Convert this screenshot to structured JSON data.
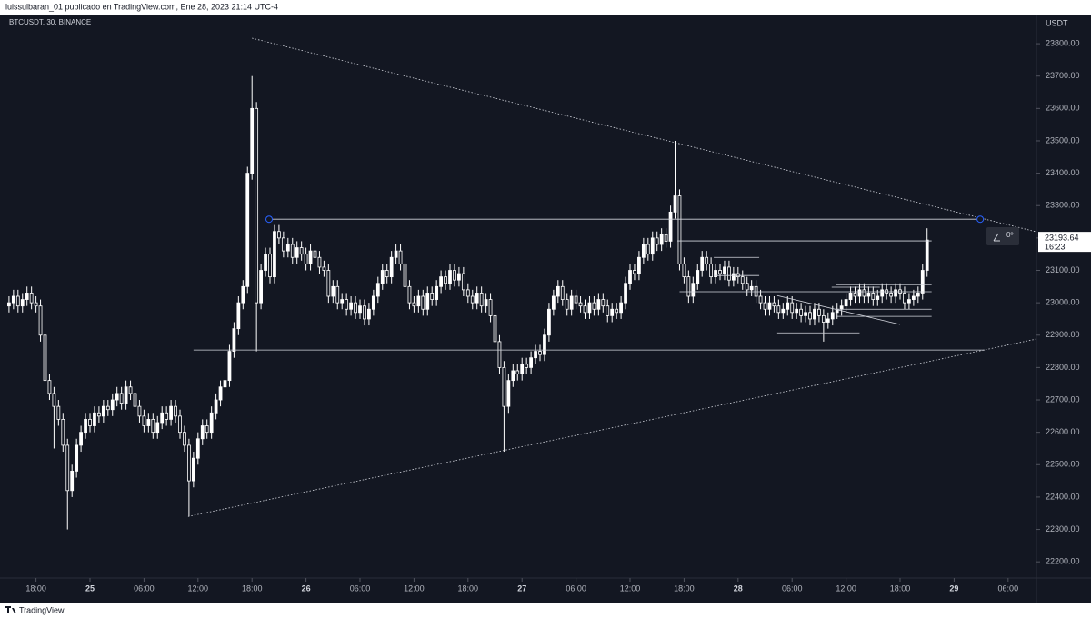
{
  "header": {
    "text": "luissulbaran_01 publicado en TradingView.com, Ene 28, 2023 21:14 UTC-4"
  },
  "footer": {
    "brand": "TradingView"
  },
  "chart_data": {
    "type": "candlestick",
    "symbol": "BTCUSDT, 30, BINANCE",
    "currency": "USDT",
    "countdown": "16:23",
    "angle_label": "0º",
    "color": "#ffffff",
    "ylim": [
      22150,
      23890
    ],
    "yticks": [
      {
        "value": 22200,
        "label": "22200.00"
      },
      {
        "value": 22300,
        "label": "22300.00"
      },
      {
        "value": 22400,
        "label": "22400.00"
      },
      {
        "value": 22500,
        "label": "22500.00"
      },
      {
        "value": 22600,
        "label": "22600.00"
      },
      {
        "value": 22700,
        "label": "22700.00"
      },
      {
        "value": 22800,
        "label": "22800.00"
      },
      {
        "value": 22900,
        "label": "22900.00"
      },
      {
        "value": 23000,
        "label": "23000.00"
      },
      {
        "value": 23100,
        "label": "23100.00"
      },
      {
        "value": 23200,
        "label": "23200.00"
      },
      {
        "value": 23300,
        "label": "23300.00"
      },
      {
        "value": 23400,
        "label": "23400.00"
      },
      {
        "value": 23500,
        "label": "23500.00"
      },
      {
        "value": 23600,
        "label": "23600.00"
      },
      {
        "value": 23700,
        "label": "23700.00"
      },
      {
        "value": 23800,
        "label": "23800.00"
      }
    ],
    "xlim": [
      -2,
      228.3
    ],
    "xticks": [
      {
        "value": 6,
        "label": "18:00"
      },
      {
        "value": 18,
        "label": "25"
      },
      {
        "value": 30,
        "label": "06:00"
      },
      {
        "value": 42,
        "label": "12:00"
      },
      {
        "value": 54,
        "label": "18:00"
      },
      {
        "value": 66,
        "label": "26"
      },
      {
        "value": 78,
        "label": "06:00"
      },
      {
        "value": 90,
        "label": "12:00"
      },
      {
        "value": 102,
        "label": "18:00"
      },
      {
        "value": 114,
        "label": "27"
      },
      {
        "value": 126,
        "label": "06:00"
      },
      {
        "value": 138,
        "label": "12:00"
      },
      {
        "value": 150,
        "label": "18:00"
      },
      {
        "value": 162,
        "label": "28"
      },
      {
        "value": 174,
        "label": "06:00"
      },
      {
        "value": 186,
        "label": "12:00"
      },
      {
        "value": 198,
        "label": "18:00"
      },
      {
        "value": 210,
        "label": "29"
      },
      {
        "value": 222,
        "label": "06:00"
      }
    ],
    "open": [
      22990,
      23000,
      23020,
      22990,
      23010,
      23030,
      23000,
      22990,
      22900,
      22760,
      22720,
      22680,
      22640,
      22560,
      22420,
      22480,
      22560,
      22600,
      22640,
      22620,
      22660,
      22650,
      22680,
      22670,
      22700,
      22720,
      22690,
      22740,
      22720,
      22680,
      22650,
      22620,
      22640,
      22600,
      22630,
      22660,
      22640,
      22680,
      22650,
      22600,
      22560,
      22450,
      22520,
      22580,
      22620,
      22600,
      22660,
      22700,
      22740,
      22760,
      22850,
      22920,
      23000,
      23050,
      23400,
      23600,
      23000,
      23100,
      23150,
      23080,
      23220,
      23200,
      23160,
      23180,
      23140,
      23170,
      23150,
      23120,
      23160,
      23140,
      23110,
      23100,
      23020,
      23050,
      23000,
      23010,
      22980,
      23000,
      22970,
      22990,
      22950,
      22980,
      23020,
      23060,
      23100,
      23080,
      23140,
      23160,
      23120,
      23050,
      23000,
      22990,
      23020,
      22980,
      23030,
      23010,
      23050,
      23080,
      23060,
      23100,
      23070,
      23090,
      23040,
      23020,
      23000,
      23030,
      22990,
      23010,
      22960,
      22880,
      22800,
      22680,
      22760,
      22790,
      22780,
      22810,
      22800,
      22830,
      22850,
      22840,
      22900,
      22980,
      23020,
      23050,
      23010,
      22980,
      23020,
      23000,
      22990,
      22970,
      23000,
      22980,
      23010,
      22990,
      22960,
      22980,
      22970,
      23000,
      23060,
      23100,
      23090,
      23140,
      23180,
      23150,
      23200,
      23180,
      23210,
      23190,
      23280,
      23330,
      23120,
      23080,
      23020,
      23060,
      23100,
      23140,
      23120,
      23080,
      23100,
      23090,
      23110,
      23070,
      23090,
      23080,
      23060,
      23040,
      23050,
      23020,
      23000,
      22980,
      23000,
      22990,
      22970,
      22980,
      23000,
      22970,
      22980,
      22960,
      22970,
      22950,
      22980,
      22960,
      22940,
      22950,
      22970,
      22980,
      22990,
      23010,
      23030,
      23020,
      23040,
      23020,
      23030,
      23010,
      23020,
      23040,
      23030,
      23020,
      23040,
      23030,
      23000,
      23010,
      23020,
      23030,
      23100
    ],
    "high": [
      23020,
      23040,
      23040,
      23030,
      23050,
      23050,
      23020,
      23010,
      22920,
      22780,
      22740,
      22700,
      22660,
      22580,
      22500,
      22580,
      22620,
      22660,
      22660,
      22680,
      22680,
      22700,
      22700,
      22720,
      22740,
      22740,
      22760,
      22760,
      22740,
      22700,
      22670,
      22660,
      22660,
      22650,
      22680,
      22680,
      22700,
      22700,
      22670,
      22620,
      22580,
      22540,
      22600,
      22640,
      22640,
      22680,
      22720,
      22760,
      22780,
      22870,
      22940,
      23020,
      23070,
      23420,
      23700,
      23620,
      23120,
      23170,
      23170,
      23240,
      23240,
      23220,
      23200,
      23200,
      23190,
      23190,
      23170,
      23180,
      23180,
      23160,
      23130,
      23120,
      23070,
      23070,
      23030,
      23030,
      23020,
      23020,
      23010,
      23010,
      23000,
      23040,
      23080,
      23120,
      23120,
      23160,
      23180,
      23180,
      23140,
      23070,
      23020,
      23040,
      23040,
      23050,
      23050,
      23070,
      23100,
      23100,
      23120,
      23120,
      23110,
      23110,
      23060,
      23040,
      23050,
      23050,
      23030,
      23030,
      22980,
      22900,
      22820,
      22780,
      22810,
      22810,
      22830,
      22830,
      22850,
      22870,
      22870,
      22920,
      23000,
      23040,
      23070,
      23070,
      23030,
      23040,
      23040,
      23020,
      23010,
      23020,
      23020,
      23030,
      23030,
      23010,
      23000,
      23000,
      23020,
      23080,
      23120,
      23120,
      23160,
      23200,
      23200,
      23220,
      23220,
      23230,
      23230,
      23300,
      23500,
      23350,
      23140,
      23100,
      23080,
      23120,
      23160,
      23160,
      23140,
      23120,
      23120,
      23130,
      23130,
      23110,
      23110,
      23100,
      23080,
      23070,
      23070,
      23040,
      23020,
      23020,
      23020,
      23010,
      23000,
      23020,
      23020,
      23000,
      23000,
      22990,
      22990,
      23000,
      23000,
      22980,
      22970,
      22990,
      23000,
      23010,
      23030,
      23050,
      23050,
      23060,
      23060,
      23050,
      23050,
      23040,
      23060,
      23060,
      23050,
      23060,
      23060,
      23050,
      23030,
      23040,
      23050,
      23120,
      23230
    ],
    "low": [
      22970,
      22980,
      22970,
      22970,
      22990,
      22980,
      22970,
      22880,
      22600,
      22700,
      22550,
      22620,
      22540,
      22300,
      22400,
      22460,
      22540,
      22580,
      22600,
      22600,
      22630,
      22630,
      22650,
      22650,
      22680,
      22670,
      22670,
      22700,
      22660,
      22630,
      22600,
      22600,
      22580,
      22580,
      22610,
      22620,
      22620,
      22630,
      22580,
      22540,
      22340,
      22430,
      22500,
      22560,
      22580,
      22580,
      22640,
      22680,
      22720,
      22740,
      22830,
      22900,
      22980,
      23030,
      23380,
      22850,
      22980,
      23080,
      23060,
      23060,
      23180,
      23140,
      23140,
      23120,
      23120,
      23130,
      23100,
      23100,
      23120,
      23090,
      23080,
      23000,
      23000,
      22980,
      22980,
      22960,
      22960,
      22950,
      22950,
      22930,
      22930,
      22960,
      23000,
      23040,
      23060,
      23060,
      23120,
      23100,
      23030,
      22980,
      22970,
      22970,
      22960,
      22960,
      22990,
      22990,
      23030,
      23040,
      23040,
      23050,
      23050,
      23020,
      23000,
      22980,
      22980,
      22970,
      22970,
      22940,
      22860,
      22780,
      22540,
      22660,
      22740,
      22760,
      22760,
      22780,
      22780,
      22810,
      22820,
      22820,
      22880,
      22960,
      23000,
      22990,
      22960,
      22960,
      22980,
      22970,
      22950,
      22950,
      22960,
      22960,
      22970,
      22940,
      22940,
      22950,
      22950,
      22980,
      23040,
      23070,
      23070,
      23120,
      23130,
      23130,
      23160,
      23160,
      23170,
      23170,
      23260,
      23100,
      23060,
      23000,
      23000,
      23040,
      23080,
      23100,
      23060,
      23060,
      23070,
      23070,
      23050,
      23050,
      23060,
      23040,
      23020,
      23020,
      23000,
      22980,
      22960,
      22960,
      22970,
      22950,
      22950,
      22960,
      22950,
      22950,
      22940,
      22940,
      22930,
      22930,
      22940,
      22880,
      22920,
      22930,
      22950,
      22960,
      22970,
      22990,
      23000,
      23000,
      23000,
      23000,
      22990,
      22990,
      23000,
      23010,
      23000,
      23000,
      23010,
      22980,
      22980,
      22990,
      23000,
      23010,
      23080
    ],
    "close": [
      23000,
      23020,
      22990,
      23010,
      23030,
      23000,
      22990,
      22900,
      22760,
      22720,
      22680,
      22640,
      22560,
      22420,
      22480,
      22560,
      22600,
      22640,
      22620,
      22660,
      22650,
      22680,
      22670,
      22700,
      22720,
      22690,
      22740,
      22720,
      22680,
      22650,
      22620,
      22640,
      22600,
      22630,
      22660,
      22640,
      22680,
      22650,
      22600,
      22560,
      22450,
      22520,
      22580,
      22620,
      22600,
      22660,
      22700,
      22740,
      22760,
      22850,
      22920,
      23000,
      23050,
      23400,
      23600,
      23000,
      23100,
      23150,
      23080,
      23220,
      23200,
      23160,
      23180,
      23140,
      23170,
      23150,
      23120,
      23160,
      23140,
      23110,
      23100,
      23020,
      23050,
      23000,
      23010,
      22980,
      23000,
      22970,
      22990,
      22950,
      22980,
      23020,
      23060,
      23100,
      23080,
      23140,
      23160,
      23120,
      23050,
      23000,
      22990,
      23020,
      22980,
      23030,
      23010,
      23050,
      23080,
      23060,
      23100,
      23070,
      23090,
      23040,
      23020,
      23000,
      23030,
      22990,
      23010,
      22960,
      22880,
      22800,
      22680,
      22760,
      22790,
      22780,
      22810,
      22800,
      22830,
      22850,
      22840,
      22900,
      22980,
      23020,
      23050,
      23010,
      22980,
      23020,
      23000,
      22990,
      22970,
      23000,
      22980,
      23010,
      22990,
      22960,
      22980,
      22970,
      23000,
      23060,
      23100,
      23090,
      23140,
      23180,
      23150,
      23200,
      23180,
      23210,
      23190,
      23280,
      23330,
      23120,
      23080,
      23020,
      23060,
      23100,
      23140,
      23120,
      23080,
      23100,
      23090,
      23110,
      23070,
      23090,
      23080,
      23060,
      23040,
      23050,
      23020,
      23000,
      22980,
      23000,
      22990,
      22970,
      22980,
      23000,
      22970,
      22980,
      22960,
      22970,
      22950,
      22980,
      22960,
      22940,
      22950,
      22970,
      22980,
      22990,
      23010,
      23030,
      23020,
      23040,
      23020,
      23030,
      23010,
      23020,
      23040,
      23030,
      23020,
      23040,
      23030,
      23000,
      23010,
      23020,
      23030,
      23100,
      23193.64
    ],
    "drawings": [
      {
        "style": "dotted",
        "x": [
          54,
          228.3
        ],
        "y": [
          23817,
          23219
        ]
      },
      {
        "style": "dotted",
        "x": [
          39.8,
          228.3
        ],
        "y": [
          22340,
          22888
        ]
      },
      {
        "style": "solid",
        "x": [
          57.8,
          215.8
        ],
        "y": [
          23258,
          23258
        ],
        "handles": true
      },
      {
        "style": "solid",
        "x": [
          41,
          216.8
        ],
        "y": [
          22854,
          22854
        ]
      },
      {
        "style": "solid",
        "x": [
          148.5,
          205
        ],
        "y": [
          23191,
          23191
        ]
      },
      {
        "style": "solid",
        "x": [
          183.8,
          205
        ],
        "y": [
          23056,
          23056
        ]
      },
      {
        "style": "solid",
        "x": [
          149,
          205
        ],
        "y": [
          23034,
          23034
        ]
      },
      {
        "style": "solid",
        "x": [
          156.6,
          166.7
        ],
        "y": [
          23140,
          23140
        ]
      },
      {
        "style": "solid",
        "x": [
          156.6,
          166.7
        ],
        "y": [
          23084,
          23084
        ]
      },
      {
        "style": "solid",
        "x": [
          183.8,
          205
        ],
        "y": [
          22980,
          22980
        ]
      },
      {
        "style": "solid",
        "x": [
          183.8,
          205
        ],
        "y": [
          22958,
          22958
        ]
      },
      {
        "style": "solid",
        "x": [
          170.7,
          189
        ],
        "y": [
          22907,
          22907
        ]
      },
      {
        "style": "solid",
        "x": [
          182.8,
          193.5
        ],
        "y": [
          23048,
          23048
        ]
      },
      {
        "style": "solid",
        "x": [
          170.7,
          198
        ],
        "y": [
          23022,
          22933
        ]
      }
    ]
  }
}
